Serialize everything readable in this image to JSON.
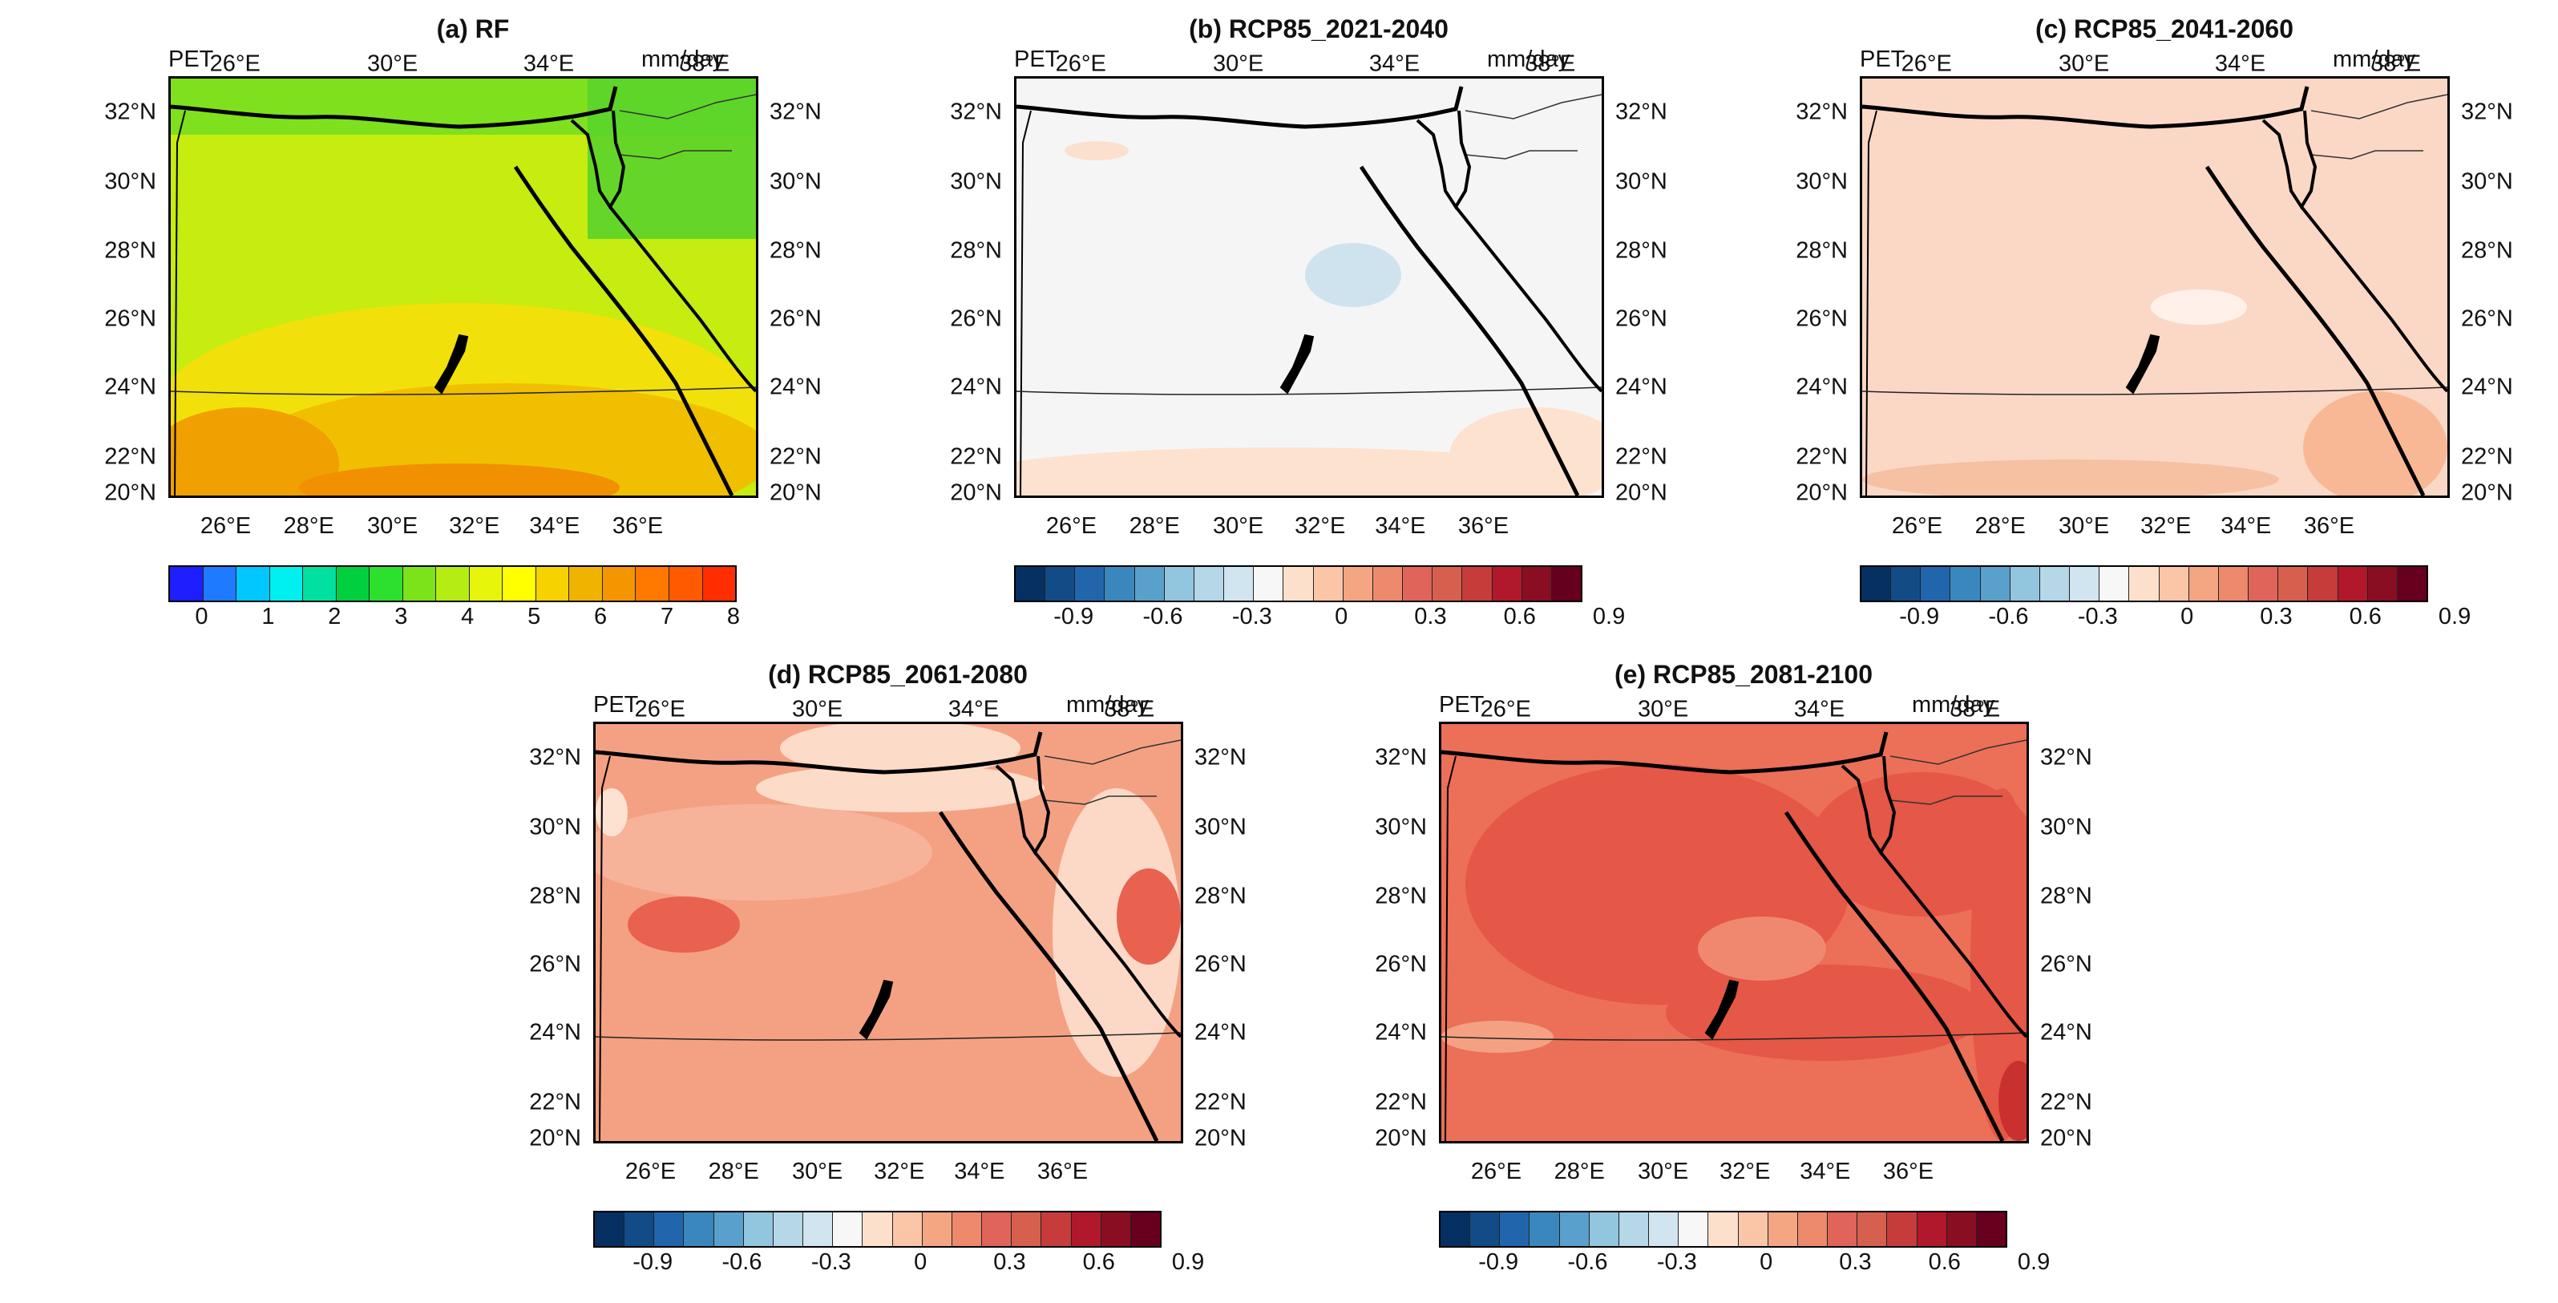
{
  "panels": [
    {
      "id": "a",
      "title": "(a) RF",
      "corner_left": "PET",
      "corner_right": "mm/day",
      "colorbar": "rf"
    },
    {
      "id": "b",
      "title": "(b) RCP85_2021-2040",
      "corner_left": "PET",
      "corner_right": "mm/day",
      "colorbar": "diff"
    },
    {
      "id": "c",
      "title": "(c) RCP85_2041-2060",
      "corner_left": "PET",
      "corner_right": "mm/day",
      "colorbar": "diff"
    },
    {
      "id": "d",
      "title": "(d) RCP85_2061-2080",
      "corner_left": "PET",
      "corner_right": "mm/day",
      "colorbar": "diff"
    },
    {
      "id": "e",
      "title": "(e) RCP85_2081-2100",
      "corner_left": "PET",
      "corner_right": "mm/day",
      "colorbar": "diff"
    }
  ],
  "axes": {
    "top_lon_labels": [
      "26°E",
      "30°E",
      "34°E",
      "38°E"
    ],
    "bottom_lon_labels": [
      "26°E",
      "28°E",
      "30°E",
      "32°E",
      "34°E",
      "36°E"
    ],
    "lat_labels": [
      "32°N",
      "30°N",
      "28°N",
      "26°N",
      "24°N",
      "22°N",
      "20°N"
    ]
  },
  "colorbars": {
    "rf": {
      "labels": [
        "0",
        "1",
        "2",
        "3",
        "4",
        "5",
        "6",
        "7",
        "8"
      ],
      "colors": [
        "#1e1eff",
        "#1e7bff",
        "#00c8ff",
        "#00f0f0",
        "#00e0a0",
        "#00d040",
        "#2ee02e",
        "#7ce31a",
        "#b4ec14",
        "#e6f50a",
        "#ffff00",
        "#f5d200",
        "#f0b400",
        "#f59600",
        "#ff7800",
        "#ff5a00",
        "#ff2d00"
      ]
    },
    "diff": {
      "labels": [
        "-0.9",
        "-0.6",
        "-0.3",
        "0",
        "0.3",
        "0.6",
        "0.9"
      ],
      "colors": [
        "#053061",
        "#134b87",
        "#2166ac",
        "#3a87bd",
        "#5aa0cd",
        "#92c5de",
        "#b5d7e8",
        "#d1e5f0",
        "#f7f7f7",
        "#fde0cc",
        "#fbc5a8",
        "#f4a582",
        "#ed8a6b",
        "#e0645a",
        "#d6604d",
        "#c63c3a",
        "#b2182b",
        "#8a0e22",
        "#67001f"
      ]
    }
  },
  "fills": {
    "a": {
      "base": "#b4e612"
    },
    "b": {
      "base": "#f5f5f5"
    },
    "c": {
      "base": "#fbd8c6"
    },
    "d": {
      "base": "#f4a183"
    },
    "e": {
      "base": "#ec6f58"
    }
  }
}
